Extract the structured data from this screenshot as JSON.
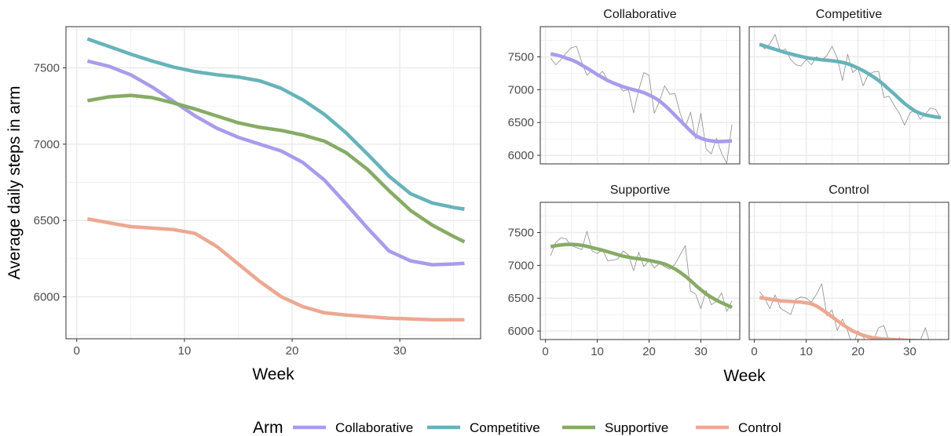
{
  "colors": {
    "Collaborative": "#a99bec",
    "Competitive": "#67b3b9",
    "Supportive": "#87ab65",
    "Control": "#eca892",
    "raw": "#8c8c8c",
    "grid": "#ebebeb",
    "panel_border": "#333333"
  },
  "legend": {
    "title": "Arm",
    "position": "bottom",
    "entries": [
      "Collaborative",
      "Competitive",
      "Supportive",
      "Control"
    ]
  },
  "chart_data": [
    {
      "type": "line",
      "panel": "combined",
      "xlabel": "Week",
      "ylabel": "Average daily steps in arm",
      "xlim": [
        -1,
        37.5
      ],
      "ylim": [
        5725,
        7770
      ],
      "xticks": [
        0,
        10,
        20,
        30
      ],
      "yticks": [
        6000,
        6500,
        7000,
        7500
      ],
      "grid": true,
      "x": [
        1,
        3,
        5,
        7,
        9,
        11,
        13,
        15,
        17,
        19,
        21,
        23,
        25,
        27,
        29,
        31,
        33,
        35,
        36
      ],
      "series": [
        {
          "name": "Collaborative",
          "values": [
            7545,
            7510,
            7455,
            7375,
            7280,
            7185,
            7105,
            7045,
            7000,
            6955,
            6880,
            6765,
            6610,
            6450,
            6300,
            6235,
            6210,
            6215,
            6220
          ]
        },
        {
          "name": "Competitive",
          "values": [
            7690,
            7640,
            7590,
            7545,
            7505,
            7475,
            7455,
            7440,
            7415,
            7365,
            7290,
            7195,
            7075,
            6935,
            6790,
            6675,
            6615,
            6585,
            6575
          ]
        },
        {
          "name": "Supportive",
          "values": [
            7285,
            7310,
            7320,
            7305,
            7270,
            7230,
            7185,
            7140,
            7110,
            7090,
            7060,
            7020,
            6945,
            6835,
            6695,
            6565,
            6470,
            6395,
            6360
          ]
        },
        {
          "name": "Control",
          "values": [
            6510,
            6485,
            6460,
            6450,
            6440,
            6415,
            6330,
            6215,
            6100,
            6000,
            5935,
            5895,
            5880,
            5870,
            5860,
            5855,
            5850,
            5850,
            5850
          ]
        }
      ]
    },
    {
      "type": "line",
      "panel": "facet",
      "title": "Collaborative",
      "xlabel": "Week",
      "xlim": [
        -1,
        37.5
      ],
      "ylim": [
        5870,
        7960
      ],
      "xticks": [
        0,
        10,
        20,
        30
      ],
      "yticks": [
        6000,
        6500,
        7000,
        7500
      ],
      "x": [
        1,
        2,
        3,
        4,
        5,
        6,
        7,
        8,
        9,
        10,
        11,
        12,
        13,
        14,
        15,
        16,
        17,
        18,
        19,
        20,
        21,
        22,
        23,
        24,
        25,
        26,
        27,
        28,
        29,
        30,
        31,
        32,
        33,
        34,
        35,
        36
      ],
      "series": [
        {
          "name": "Collaborative",
          "values": [
            7480,
            7380,
            7460,
            7560,
            7640,
            7660,
            7420,
            7220,
            7300,
            7200,
            7280,
            7150,
            7100,
            7080,
            6980,
            7000,
            6650,
            7000,
            7260,
            7220,
            6640,
            6820,
            7060,
            6930,
            6940,
            6640,
            6430,
            6660,
            6250,
            6640,
            6100,
            6020,
            6260,
            6030,
            5880,
            6470
          ]
        },
        {
          "name": "Collaborative",
          "values": [
            7545,
            7530,
            7510,
            7480,
            7455,
            7420,
            7375,
            7330,
            7280,
            7230,
            7185,
            7140,
            7105,
            7075,
            7045,
            7020,
            7000,
            6980,
            6955,
            6920,
            6880,
            6830,
            6765,
            6690,
            6610,
            6530,
            6450,
            6370,
            6300,
            6260,
            6235,
            6220,
            6210,
            6210,
            6215,
            6220
          ]
        }
      ]
    },
    {
      "type": "line",
      "panel": "facet",
      "title": "Competitive",
      "xlabel": "Week",
      "xlim": [
        -1,
        37.5
      ],
      "ylim": [
        5870,
        7960
      ],
      "xticks": [
        0,
        10,
        20,
        30
      ],
      "yticks": [
        6000,
        6500,
        7000,
        7500
      ],
      "x": [
        1,
        2,
        3,
        4,
        5,
        6,
        7,
        8,
        9,
        10,
        11,
        12,
        13,
        14,
        15,
        16,
        17,
        18,
        19,
        20,
        21,
        22,
        23,
        24,
        25,
        26,
        27,
        28,
        29,
        30,
        31,
        32,
        33,
        34,
        35,
        36
      ],
      "series": [
        {
          "name": "Competitive",
          "values": [
            7700,
            7620,
            7700,
            7840,
            7580,
            7620,
            7460,
            7380,
            7360,
            7460,
            7380,
            7500,
            7450,
            7520,
            7660,
            7480,
            7140,
            7540,
            7260,
            7330,
            7060,
            7230,
            7270,
            7280,
            6880,
            6900,
            6760,
            6640,
            6460,
            6640,
            6700,
            6550,
            6630,
            6720,
            6700,
            6560
          ]
        },
        {
          "name": "Competitive",
          "values": [
            7690,
            7665,
            7640,
            7615,
            7590,
            7565,
            7545,
            7525,
            7505,
            7490,
            7475,
            7465,
            7455,
            7448,
            7440,
            7430,
            7415,
            7395,
            7365,
            7330,
            7290,
            7245,
            7195,
            7140,
            7075,
            7005,
            6935,
            6860,
            6790,
            6730,
            6675,
            6640,
            6615,
            6600,
            6585,
            6575
          ]
        }
      ]
    },
    {
      "type": "line",
      "panel": "facet",
      "title": "Supportive",
      "xlabel": "Week",
      "xlim": [
        -1,
        37.5
      ],
      "ylim": [
        5870,
        7960
      ],
      "xticks": [
        0,
        10,
        20,
        30
      ],
      "yticks": [
        6000,
        6500,
        7000,
        7500
      ],
      "x": [
        1,
        2,
        3,
        4,
        5,
        6,
        7,
        8,
        9,
        10,
        11,
        12,
        13,
        14,
        15,
        16,
        17,
        18,
        19,
        20,
        21,
        22,
        23,
        24,
        25,
        26,
        27,
        28,
        29,
        30,
        31,
        32,
        33,
        34,
        35,
        36
      ],
      "series": [
        {
          "name": "Supportive",
          "values": [
            7150,
            7350,
            7420,
            7400,
            7300,
            7270,
            7240,
            7520,
            7220,
            7180,
            7240,
            7070,
            7080,
            7100,
            7220,
            7160,
            6920,
            7200,
            6980,
            7080,
            6960,
            7030,
            6980,
            6940,
            7020,
            7160,
            7300,
            6610,
            6560,
            6340,
            6620,
            6400,
            6450,
            6580,
            6300,
            6460
          ]
        },
        {
          "name": "Supportive",
          "values": [
            7285,
            7300,
            7310,
            7318,
            7320,
            7315,
            7305,
            7290,
            7270,
            7250,
            7230,
            7208,
            7185,
            7162,
            7140,
            7125,
            7110,
            7100,
            7090,
            7075,
            7060,
            7043,
            7020,
            6985,
            6945,
            6893,
            6835,
            6768,
            6695,
            6628,
            6565,
            6515,
            6470,
            6430,
            6395,
            6360
          ]
        }
      ]
    },
    {
      "type": "line",
      "panel": "facet",
      "title": "Control",
      "xlabel": "Week",
      "xlim": [
        -1,
        37.5
      ],
      "ylim": [
        5870,
        7960
      ],
      "xticks": [
        0,
        10,
        20,
        30
      ],
      "yticks": [
        6000,
        6500,
        7000,
        7500
      ],
      "x": [
        1,
        2,
        3,
        4,
        5,
        6,
        7,
        8,
        9,
        10,
        11,
        12,
        13,
        14,
        15,
        16,
        17,
        18,
        19,
        20,
        21,
        22,
        23,
        24,
        25,
        26,
        27,
        28,
        29,
        30,
        31,
        32,
        33,
        34,
        35,
        36
      ],
      "series": [
        {
          "name": "Control",
          "values": [
            6600,
            6500,
            6340,
            6550,
            6350,
            6300,
            6250,
            6480,
            6520,
            6500,
            6440,
            6560,
            6720,
            6230,
            6320,
            6010,
            6180,
            6000,
            5750,
            6000,
            5910,
            5780,
            5860,
            6050,
            6080,
            5850,
            5800,
            5900,
            5800,
            5700,
            5680,
            5850,
            6050,
            5780,
            5780,
            5880
          ]
        },
        {
          "name": "Control",
          "values": [
            6510,
            6498,
            6485,
            6472,
            6460,
            6455,
            6450,
            6445,
            6440,
            6430,
            6415,
            6380,
            6330,
            6275,
            6215,
            6158,
            6100,
            6048,
            6000,
            5965,
            5935,
            5913,
            5895,
            5887,
            5880,
            5875,
            5870,
            5865,
            5860,
            5857,
            5855,
            5852,
            5850,
            5850,
            5850,
            5850
          ]
        }
      ]
    }
  ]
}
